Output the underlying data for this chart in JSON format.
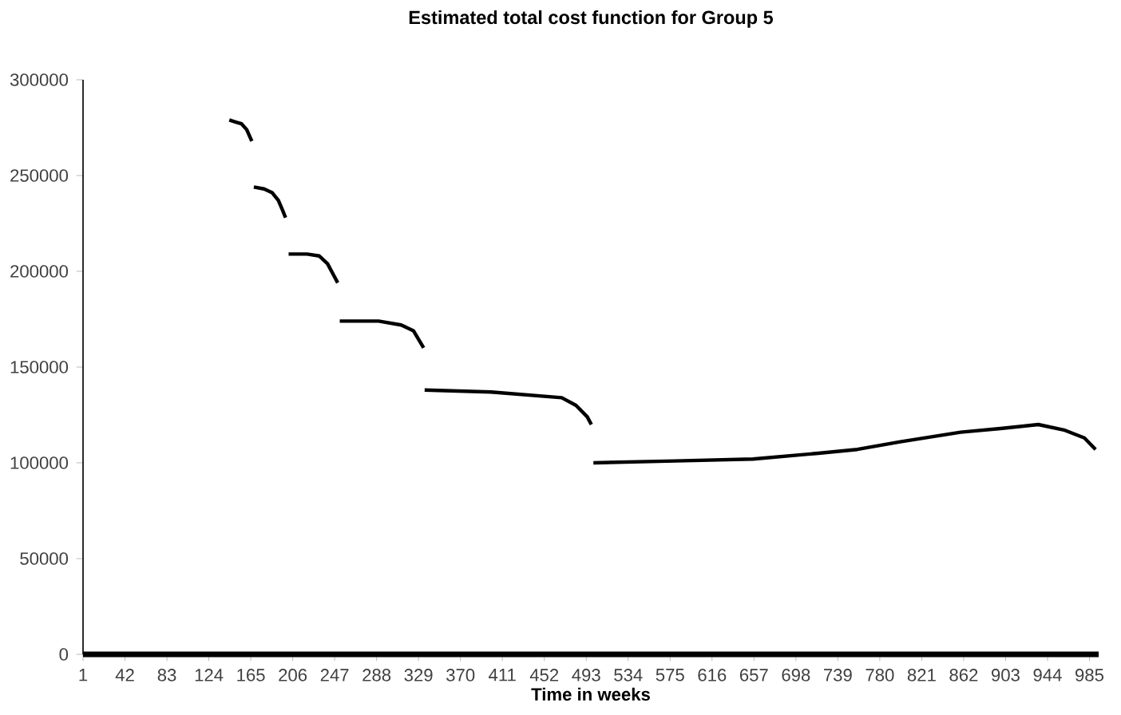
{
  "chart_data": {
    "type": "line",
    "title": "Estimated total cost function for Group 5",
    "xlabel": "Time in weeks",
    "x": [
      144,
      150,
      156,
      161,
      166,
      167,
      168,
      178,
      186,
      192,
      196,
      199,
      201,
      202,
      220,
      232,
      240,
      246,
      250,
      251,
      252,
      290,
      312,
      324,
      334,
      334.5,
      335,
      400,
      469,
      483,
      494,
      498,
      499,
      500,
      580,
      656,
      720,
      758,
      800,
      859,
      900,
      935,
      961,
      980,
      991
    ],
    "values": [
      279000,
      278000,
      277000,
      274000,
      268000,
      null,
      244000,
      243000,
      241000,
      237000,
      232000,
      228000,
      null,
      209000,
      209000,
      208000,
      204000,
      198000,
      194000,
      null,
      174000,
      174000,
      172000,
      169000,
      160000,
      null,
      138000,
      137000,
      134000,
      130000,
      124000,
      120000,
      null,
      100000,
      101000,
      102000,
      105000,
      107000,
      111000,
      116000,
      118000,
      120000,
      117000,
      113000,
      107000
    ],
    "color": "#000000",
    "marker": "none",
    "line_style": "solid",
    "xlim": [
      1,
      994
    ],
    "xticks": [
      1,
      42,
      83,
      124,
      165,
      206,
      247,
      288,
      329,
      370,
      411,
      452,
      493,
      534,
      575,
      616,
      657,
      698,
      739,
      780,
      821,
      862,
      903,
      944,
      985
    ],
    "ylim": [
      0,
      300000
    ],
    "yticks": [
      0,
      50000,
      100000,
      150000,
      200000,
      250000,
      300000
    ]
  }
}
